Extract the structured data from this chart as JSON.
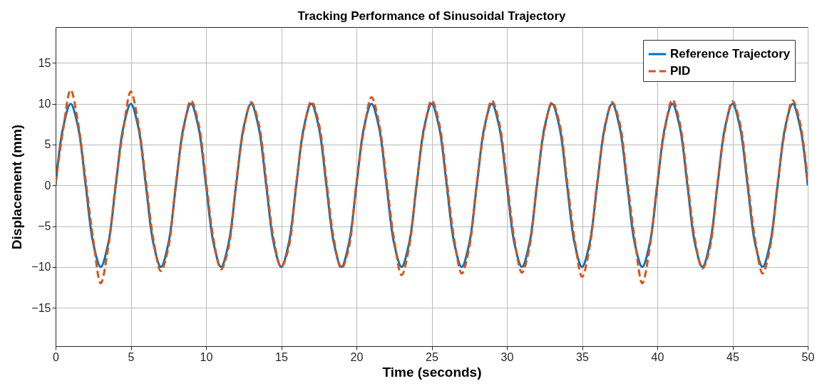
{
  "chart_data": {
    "type": "line",
    "title": "Tracking Performance of Sinusoidal Trajectory",
    "xlabel": "Time (seconds)",
    "ylabel": "Displacement (mm)",
    "x": [
      0,
      0.5,
      1,
      1.5,
      2,
      2.5,
      3,
      3.5,
      4,
      4.5,
      5,
      5.5,
      6,
      6.5,
      7,
      7.5,
      8,
      8.5,
      9,
      9.5,
      10,
      10.5,
      11,
      11.5,
      12,
      12.5,
      13,
      13.5,
      14,
      14.5,
      15,
      15.5,
      16,
      16.5,
      17,
      17.5,
      18,
      18.5,
      19,
      19.5,
      20,
      20.5,
      21,
      21.5,
      22,
      22.5,
      23,
      23.5,
      24,
      24.5,
      25,
      25.5,
      26,
      26.5,
      27,
      27.5,
      28,
      28.5,
      29,
      29.5,
      30,
      30.5,
      31,
      31.5,
      32,
      32.5,
      33,
      33.5,
      34,
      34.5,
      35,
      35.5,
      36,
      36.5,
      37,
      37.5,
      38,
      38.5,
      39,
      39.5,
      40,
      40.5,
      41,
      41.5,
      42,
      42.5,
      43,
      43.5,
      44,
      44.5,
      45,
      45.5,
      46,
      46.5,
      47,
      47.5,
      48,
      48.5,
      49,
      49.5,
      50
    ],
    "series": [
      {
        "name": "Reference Trajectory",
        "color": "#0072bd",
        "line_style": "solid",
        "values": [
          0,
          7.1,
          10,
          7.1,
          0,
          -7.1,
          -10,
          -7.1,
          0,
          7.1,
          10,
          7.1,
          0,
          -7.1,
          -10,
          -7.1,
          0,
          7.1,
          10,
          7.1,
          0,
          -7.1,
          -10,
          -7.1,
          0,
          7.1,
          10,
          7.1,
          0,
          -7.1,
          -10,
          -7.1,
          0,
          7.1,
          10,
          7.1,
          0,
          -7.1,
          -10,
          -7.1,
          0,
          7.1,
          10,
          7.1,
          0,
          -7.1,
          -10,
          -7.1,
          0,
          7.1,
          10,
          7.1,
          0,
          -7.1,
          -10,
          -7.1,
          0,
          7.1,
          10,
          7.1,
          0,
          -7.1,
          -10,
          -7.1,
          0,
          7.1,
          10,
          7.1,
          0,
          -7.1,
          -10,
          -7.1,
          0,
          7.1,
          10,
          7.1,
          0,
          -7.1,
          -10,
          -7.1,
          0,
          7.1,
          10,
          7.1,
          0,
          -7.1,
          -10,
          -7.1,
          0,
          7.1,
          10,
          7.1,
          0,
          -7.1,
          -10,
          -7.1,
          0,
          7.1,
          10,
          7.1,
          0
        ]
      },
      {
        "name": "PID",
        "color": "#d95319",
        "line_style": "dashed",
        "values": [
          0.3,
          6.8,
          11.7,
          7.6,
          0.6,
          -6.6,
          -12,
          -7.6,
          0.3,
          6.8,
          11.5,
          7.6,
          0.6,
          -6.6,
          -10.5,
          -7.6,
          0.3,
          6.8,
          10.4,
          7.6,
          0.6,
          -6.6,
          -10.3,
          -7.6,
          0.3,
          6.8,
          10.2,
          7.6,
          0.6,
          -6.6,
          -10,
          -7.6,
          0.3,
          6.8,
          10.3,
          7.6,
          0.6,
          -6.6,
          -10.2,
          -7.6,
          0.3,
          6.8,
          10.8,
          7.6,
          0.6,
          -6.6,
          -11,
          -7.6,
          0.3,
          6.8,
          10.4,
          7.6,
          0.6,
          -6.6,
          -10.8,
          -7.6,
          0.3,
          6.8,
          10.4,
          7.6,
          0.6,
          -6.6,
          -10.7,
          -7.6,
          0.3,
          6.8,
          10.2,
          7.6,
          0.6,
          -6.6,
          -11.2,
          -7.6,
          0.3,
          6.8,
          10.2,
          7.6,
          0.6,
          -6.6,
          -12,
          -7.6,
          0.3,
          6.8,
          10.5,
          7.6,
          0.6,
          -6.6,
          -10.2,
          -7.6,
          0.3,
          6.8,
          10.3,
          7.6,
          0.6,
          -6.6,
          -10.8,
          -7.6,
          0.3,
          6.8,
          10.4,
          7.6,
          0.6
        ]
      }
    ],
    "xlim": [
      0,
      50
    ],
    "xticks": [
      0,
      5,
      10,
      15,
      20,
      25,
      30,
      35,
      40,
      45,
      50
    ],
    "ylim": [
      -19.7,
      19.4
    ],
    "yticks": [
      -15,
      -10,
      -5,
      0,
      5,
      10,
      15
    ],
    "grid": true,
    "legend": "top right"
  }
}
